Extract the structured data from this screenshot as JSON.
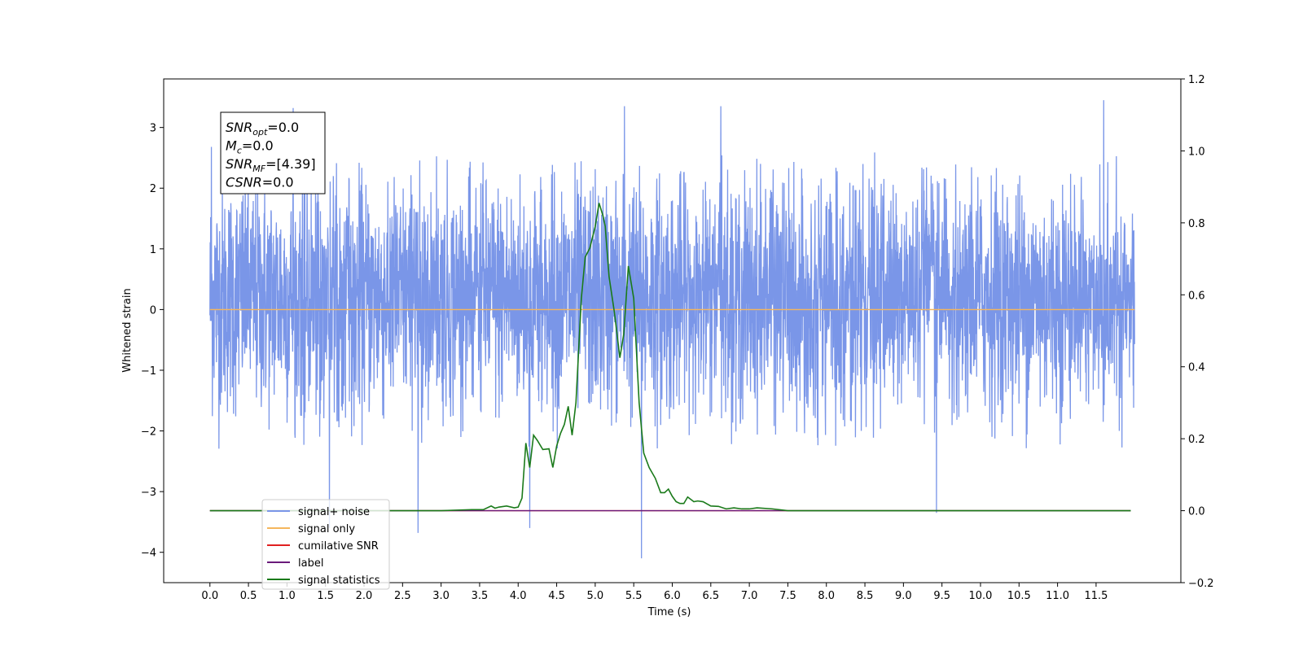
{
  "chart_data": {
    "type": "line",
    "xlabel": "Time (s)",
    "ylabel": "Whitened strain",
    "xlim": [
      -0.6,
      12.6
    ],
    "ylim": [
      -4.5,
      3.8
    ],
    "y2lim": [
      -0.2,
      1.2
    ],
    "x_ticks": [
      0.0,
      0.5,
      1.0,
      1.5,
      2.0,
      2.5,
      3.0,
      3.5,
      4.0,
      4.5,
      5.0,
      5.5,
      6.0,
      6.5,
      7.0,
      7.5,
      8.0,
      8.5,
      9.0,
      9.5,
      10.0,
      10.5,
      11.0,
      11.5
    ],
    "x_tick_labels": [
      "0.0",
      "0.5",
      "1.0",
      "1.5",
      "2.0",
      "2.5",
      "3.0",
      "3.5",
      "4.0",
      "4.5",
      "5.0",
      "5.5",
      "6.0",
      "6.5",
      "7.0",
      "7.5",
      "8.0",
      "8.5",
      "9.0",
      "9.5",
      "10.0",
      "10.5",
      "11.0",
      "11.5"
    ],
    "y_ticks": [
      3,
      2,
      1,
      0,
      -1,
      -2,
      -3,
      -4
    ],
    "y_tick_labels": [
      "3",
      "2",
      "1",
      "0",
      "−1",
      "−2",
      "−3",
      "−4"
    ],
    "y2_ticks": [
      1.2,
      1.0,
      0.8,
      0.6,
      0.4,
      0.2,
      0.0,
      -0.2
    ],
    "y2_tick_labels": [
      "1.2",
      "1.0",
      "0.8",
      "0.6",
      "0.4",
      "0.2",
      "0.0",
      "−0.2"
    ],
    "grid": false,
    "legend_position": "lower-left",
    "annotation": [
      {
        "sym": "SNR",
        "sub": "opt",
        "value": "=0.0"
      },
      {
        "sym": "M",
        "sub": "c",
        "value": "=0.0"
      },
      {
        "sym": "SNR",
        "sub": "MF",
        "value": "=[4.39]"
      },
      {
        "sym": "CSNR",
        "sub": "",
        "value": "=0.0"
      }
    ],
    "series": [
      {
        "name": "signal+ noise",
        "color": "#7a96e8",
        "axis": "left",
        "kind": "noise",
        "x_range": [
          0.0,
          12.0
        ],
        "amplitude_typical": [
          -2.0,
          2.6
        ],
        "peaks": [
          {
            "x": 0.02,
            "y": 2.68
          },
          {
            "x": 1.08,
            "y": 3.32
          },
          {
            "x": 1.55,
            "y": -3.6
          },
          {
            "x": 2.7,
            "y": -3.68
          },
          {
            "x": 4.15,
            "y": -3.6
          },
          {
            "x": 5.38,
            "y": 3.35
          },
          {
            "x": 5.6,
            "y": -4.1
          },
          {
            "x": 6.63,
            "y": 3.35
          },
          {
            "x": 9.43,
            "y": -3.35
          },
          {
            "x": 11.6,
            "y": 3.45
          }
        ]
      },
      {
        "name": "signal only",
        "color": "#f5b65c",
        "axis": "left",
        "x": [
          0.0,
          12.0
        ],
        "y": [
          0.0,
          0.0
        ]
      },
      {
        "name": "cumilative SNR",
        "color": "#e02020",
        "axis": "right",
        "x": [
          0.0,
          11.95
        ],
        "y": [
          0.0,
          0.0
        ]
      },
      {
        "name": "label",
        "color": "#6a1a7a",
        "axis": "right",
        "x": [
          0.0,
          11.95
        ],
        "y": [
          0.0,
          0.0
        ]
      },
      {
        "name": "signal statistics",
        "color": "#1a7a1a",
        "axis": "right",
        "x": [
          0.0,
          0.5,
          1.0,
          1.5,
          2.0,
          2.5,
          3.0,
          3.4,
          3.55,
          3.65,
          3.7,
          3.75,
          3.85,
          3.95,
          4.0,
          4.05,
          4.1,
          4.15,
          4.2,
          4.25,
          4.32,
          4.4,
          4.45,
          4.5,
          4.55,
          4.6,
          4.65,
          4.7,
          4.75,
          4.82,
          4.87,
          4.93,
          5.0,
          5.05,
          5.1,
          5.13,
          5.18,
          5.25,
          5.32,
          5.37,
          5.43,
          5.5,
          5.57,
          5.63,
          5.7,
          5.78,
          5.85,
          5.9,
          5.95,
          6.0,
          6.05,
          6.1,
          6.15,
          6.2,
          6.28,
          6.33,
          6.4,
          6.5,
          6.6,
          6.7,
          6.8,
          6.9,
          7.0,
          7.1,
          7.3,
          7.5,
          8.0,
          8.5,
          9.0,
          10.0,
          11.0,
          11.95
        ],
        "y": [
          0.0,
          0.0,
          0.0,
          0.0,
          0.0,
          0.0,
          0.0,
          0.003,
          0.003,
          0.013,
          0.007,
          0.01,
          0.013,
          0.008,
          0.01,
          0.035,
          0.188,
          0.12,
          0.21,
          0.195,
          0.17,
          0.172,
          0.12,
          0.18,
          0.215,
          0.24,
          0.29,
          0.21,
          0.3,
          0.59,
          0.705,
          0.73,
          0.79,
          0.855,
          0.82,
          0.79,
          0.65,
          0.55,
          0.425,
          0.49,
          0.68,
          0.59,
          0.3,
          0.16,
          0.12,
          0.09,
          0.05,
          0.05,
          0.06,
          0.04,
          0.025,
          0.02,
          0.02,
          0.038,
          0.025,
          0.027,
          0.025,
          0.013,
          0.012,
          0.005,
          0.008,
          0.005,
          0.005,
          0.008,
          0.005,
          0.0,
          0.0,
          0.0,
          0.0,
          0.0,
          0.0,
          0.0
        ]
      }
    ]
  }
}
